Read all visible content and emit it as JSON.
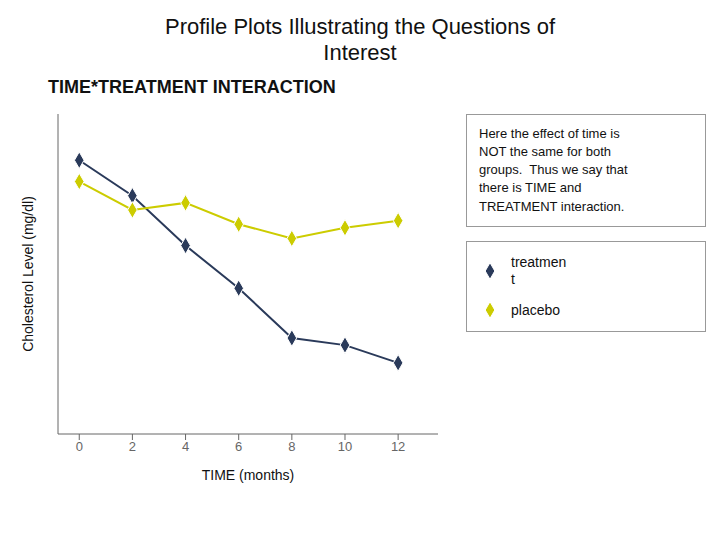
{
  "chart_data": {
    "type": "line",
    "title": "Profile Plots Illustrating the Questions of\nInterest",
    "subtitle": "TIME*TREATMENT INTERACTION",
    "xlabel": "TIME (months)",
    "ylabel": "Cholesterol Level (mg/dl)",
    "annotation": "Here the effect of time is\nNOT the same for both\ngroups.  Thus we say that\nthere is TIME and\nTREATMENT interaction.",
    "x": [
      0,
      2,
      4,
      6,
      8,
      10,
      12
    ],
    "series": [
      {
        "name": "treatmen\nt",
        "color": "#2a3a5a",
        "marker": "diamond",
        "values": [
          0.82,
          0.72,
          0.58,
          0.46,
          0.32,
          0.3,
          0.25
        ]
      },
      {
        "name": "placebo",
        "color": "#cccc00",
        "marker": "diamond",
        "values": [
          0.76,
          0.68,
          0.7,
          0.64,
          0.6,
          0.63,
          0.65
        ]
      }
    ],
    "xlim": [
      -0.8,
      13.5
    ],
    "xticks": [
      0,
      2,
      4,
      6,
      8,
      10,
      12
    ],
    "ylim": [
      0.05,
      0.95
    ],
    "tick_labels": "x",
    "grid": false,
    "legend": "right"
  }
}
